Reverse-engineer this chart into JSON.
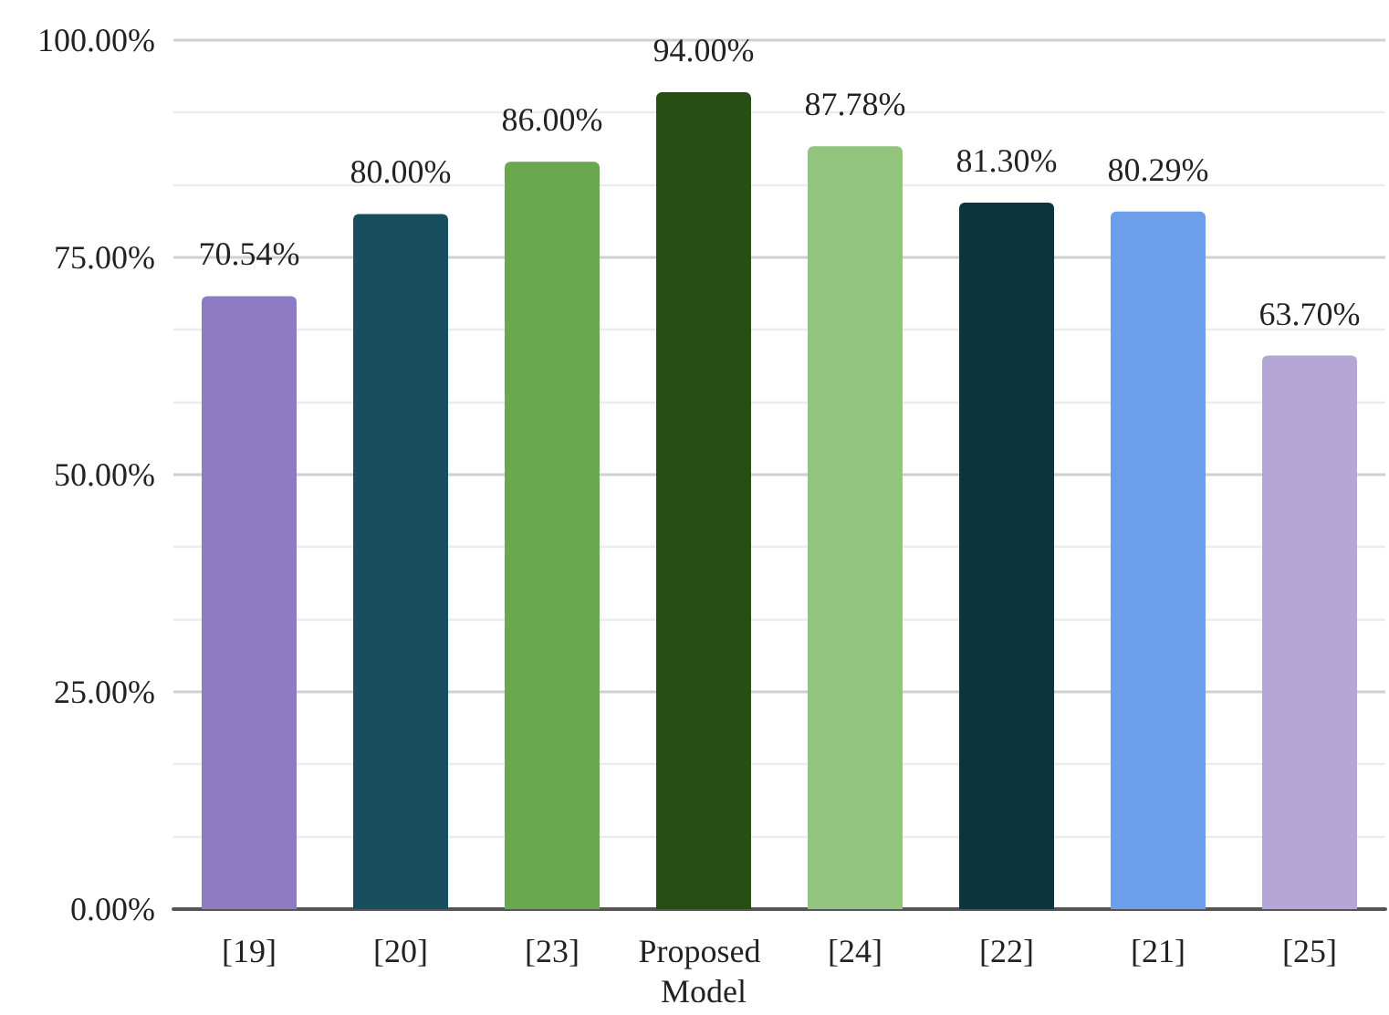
{
  "chart_data": {
    "type": "bar",
    "categories": [
      "[19]",
      "[20]",
      "[23]",
      "Proposed Model",
      "[24]",
      "[22]",
      "[21]",
      "[25]"
    ],
    "values": [
      70.54,
      80.0,
      86.0,
      94.0,
      87.78,
      81.3,
      80.29,
      63.7
    ],
    "colors": [
      "#8e7cc3",
      "#174f5e",
      "#6aa84f",
      "#274e13",
      "#93c47d",
      "#0c343d",
      "#6d9eeb",
      "#b4a7d6"
    ],
    "value_labels": [
      "70.54%",
      "80.00%",
      "86.00%",
      "94.00%",
      "87.78%",
      "81.30%",
      "80.29%",
      "63.70%"
    ],
    "ylim": [
      0,
      100
    ],
    "yticks": [
      {
        "value": 0,
        "label": "0.00%"
      },
      {
        "value": 25,
        "label": "25.00%"
      },
      {
        "value": 50,
        "label": "50.00%"
      },
      {
        "value": 75,
        "label": "75.00%"
      },
      {
        "value": 100,
        "label": "100.00%"
      }
    ],
    "grid": true
  }
}
